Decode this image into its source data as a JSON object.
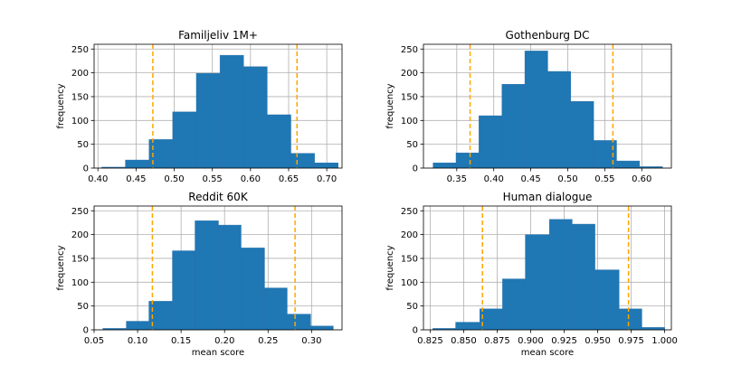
{
  "colors": {
    "bar": "#1f77b4",
    "bar_edge": "#2a6fa8",
    "threshold": "#ffa500",
    "grid": "#b0b0b0"
  },
  "chart_data": [
    {
      "type": "bar",
      "title": "Familjeliv 1M+",
      "xlabel": "",
      "ylabel": "frequency",
      "xlim": [
        0.395,
        0.72
      ],
      "ylim": [
        0,
        260
      ],
      "xticks": [
        "0.40",
        "0.45",
        "0.50",
        "0.55",
        "0.60",
        "0.65",
        "0.70"
      ],
      "yticks": [
        "0",
        "50",
        "100",
        "150",
        "200",
        "250"
      ],
      "grid": true,
      "bin_edges": [
        0.405,
        0.436,
        0.467,
        0.498,
        0.529,
        0.56,
        0.591,
        0.622,
        0.653,
        0.684,
        0.715
      ],
      "values": [
        2,
        17,
        60,
        118,
        199,
        237,
        213,
        112,
        31,
        11
      ],
      "vlines": [
        0.472,
        0.661
      ]
    },
    {
      "type": "bar",
      "title": "Gothenburg DC",
      "xlabel": "",
      "ylabel": "frequency",
      "xlim": [
        0.305,
        0.64
      ],
      "ylim": [
        0,
        260
      ],
      "xticks": [
        "0.35",
        "0.40",
        "0.45",
        "0.50",
        "0.55",
        "0.60"
      ],
      "yticks": [
        "0",
        "50",
        "100",
        "150",
        "200",
        "250"
      ],
      "grid": true,
      "bin_edges": [
        0.318,
        0.349,
        0.38,
        0.411,
        0.442,
        0.473,
        0.504,
        0.535,
        0.566,
        0.597,
        0.628
      ],
      "values": [
        11,
        32,
        110,
        176,
        246,
        203,
        140,
        58,
        15,
        3
      ],
      "vlines": [
        0.368,
        0.561
      ]
    },
    {
      "type": "bar",
      "title": "Reddit 60K",
      "xlabel": "mean score",
      "ylabel": "frequency",
      "xlim": [
        0.05,
        0.335
      ],
      "ylim": [
        0,
        260
      ],
      "xticks": [
        "0.05",
        "0.10",
        "0.15",
        "0.20",
        "0.25",
        "0.30"
      ],
      "yticks": [
        "0",
        "50",
        "100",
        "150",
        "200",
        "250"
      ],
      "grid": true,
      "bin_edges": [
        0.06,
        0.087,
        0.113,
        0.14,
        0.166,
        0.193,
        0.219,
        0.246,
        0.272,
        0.299,
        0.325
      ],
      "values": [
        3,
        18,
        60,
        166,
        229,
        220,
        172,
        88,
        33,
        8
      ],
      "vlines": [
        0.117,
        0.281
      ]
    },
    {
      "type": "bar",
      "title": "Human dialogue",
      "xlabel": "mean score",
      "ylabel": "frequency",
      "xlim": [
        0.82,
        1.005
      ],
      "ylim": [
        0,
        260
      ],
      "xticks": [
        "0.825",
        "0.850",
        "0.875",
        "0.900",
        "0.925",
        "0.950",
        "0.975",
        "1.000"
      ],
      "yticks": [
        "0",
        "50",
        "100",
        "150",
        "200",
        "250"
      ],
      "grid": true,
      "bin_edges": [
        0.827,
        0.844,
        0.862,
        0.879,
        0.896,
        0.914,
        0.931,
        0.948,
        0.966,
        0.983,
        1.0
      ],
      "values": [
        3,
        16,
        44,
        107,
        200,
        232,
        222,
        126,
        44,
        5
      ],
      "vlines": [
        0.864,
        0.973
      ]
    }
  ]
}
